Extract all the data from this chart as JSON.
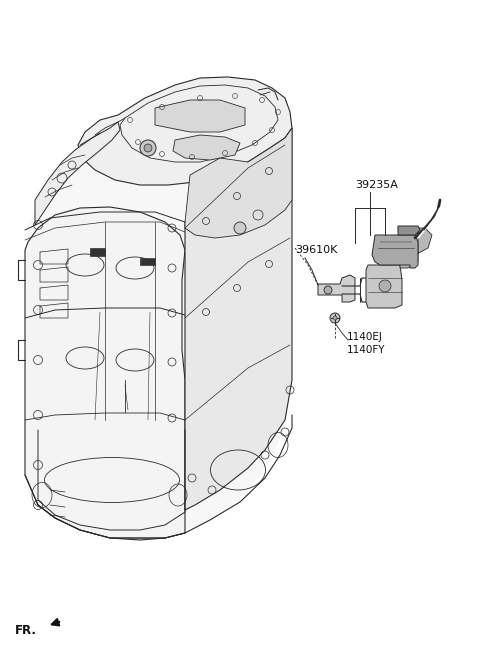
{
  "bg_color": "#ffffff",
  "line_color": "#2a2a2a",
  "label_39235A": "39235A",
  "label_39610K": "39610K",
  "label_1140EJ": "1140EJ",
  "label_1140FY": "1140FY",
  "label_FR": "FR.",
  "font_size_labels": 7.5,
  "font_size_fr": 8.5,
  "fig_width": 4.8,
  "fig_height": 6.56,
  "dpi": 100
}
